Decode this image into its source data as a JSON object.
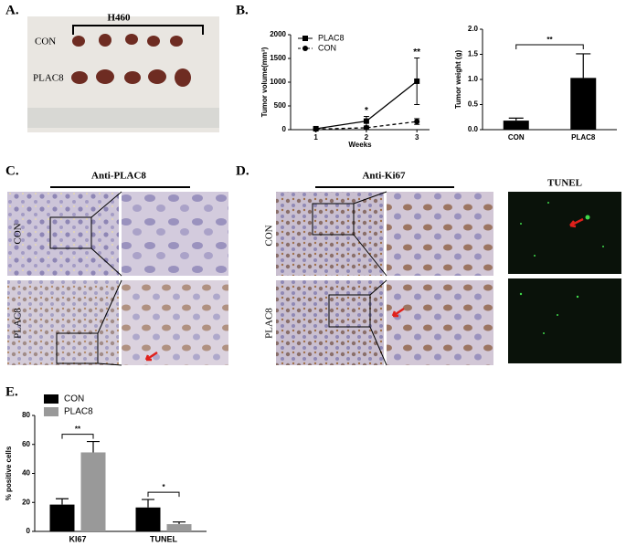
{
  "panels": {
    "a": {
      "label": "A.",
      "title": "H460",
      "rows": [
        "CON",
        "PLAC8"
      ]
    },
    "b": {
      "label": "B."
    },
    "c": {
      "label": "C.",
      "title": "Anti-PLAC8",
      "rows": [
        "CON",
        "PLAC8"
      ]
    },
    "d": {
      "label": "D.",
      "title": "Anti-Ki67",
      "rows": [
        "CON",
        "PLAC8"
      ],
      "side_title": "TUNEL"
    },
    "e": {
      "label": "E."
    }
  },
  "chart_data": [
    {
      "type": "line",
      "xlabel": "Weeks",
      "ylabel": "Tumor volume(mm³)",
      "x": [
        1,
        2,
        3
      ],
      "xlim": [
        0.5,
        3.25
      ],
      "xticks": [
        1,
        2,
        3
      ],
      "ylim": [
        0,
        2000
      ],
      "yticks": [
        0,
        500,
        1000,
        1500,
        2000
      ],
      "legend": "top-left",
      "series": [
        {
          "name": "PLAC8",
          "color": "#000000",
          "marker": "square",
          "dashed": false,
          "values": [
            20,
            180,
            1020
          ],
          "errors": [
            10,
            100,
            490
          ]
        },
        {
          "name": "CON",
          "color": "#000000",
          "marker": "circle",
          "dashed": true,
          "values": [
            10,
            40,
            170
          ],
          "errors": [
            5,
            20,
            60
          ]
        }
      ],
      "annotations": [
        {
          "text": "*",
          "x": 2
        },
        {
          "text": "**",
          "x": 3
        }
      ]
    },
    {
      "type": "bar",
      "ylabel": "Tumor weight (g)",
      "categories": [
        "CON",
        "PLAC8"
      ],
      "values": [
        0.18,
        1.03
      ],
      "errors": [
        0.05,
        0.48
      ],
      "color": "#000000",
      "ylim": [
        0,
        2
      ],
      "yticks": [
        {
          "value": 0,
          "label": "0.0"
        },
        0.5,
        {
          "value": 1,
          "label": "1.0"
        },
        1.5,
        {
          "value": 2,
          "label": "2.0"
        }
      ],
      "annotation": "**"
    },
    {
      "type": "grouped_bar",
      "ylabel": "% positive cells",
      "categories": [
        "KI67",
        "TUNEL"
      ],
      "ylim": [
        0,
        80
      ],
      "yticks": [
        0,
        20,
        40,
        60,
        80
      ],
      "legend": "top-left",
      "series": [
        {
          "name": "CON",
          "color": "#000000",
          "values": [
            18.5,
            16.5
          ],
          "errors": [
            4,
            5.5
          ]
        },
        {
          "name": "PLAC8",
          "color": "#999999",
          "values": [
            54.5,
            5
          ],
          "errors": [
            7.5,
            1.5
          ]
        }
      ],
      "annotations": [
        "**",
        "*"
      ]
    }
  ]
}
